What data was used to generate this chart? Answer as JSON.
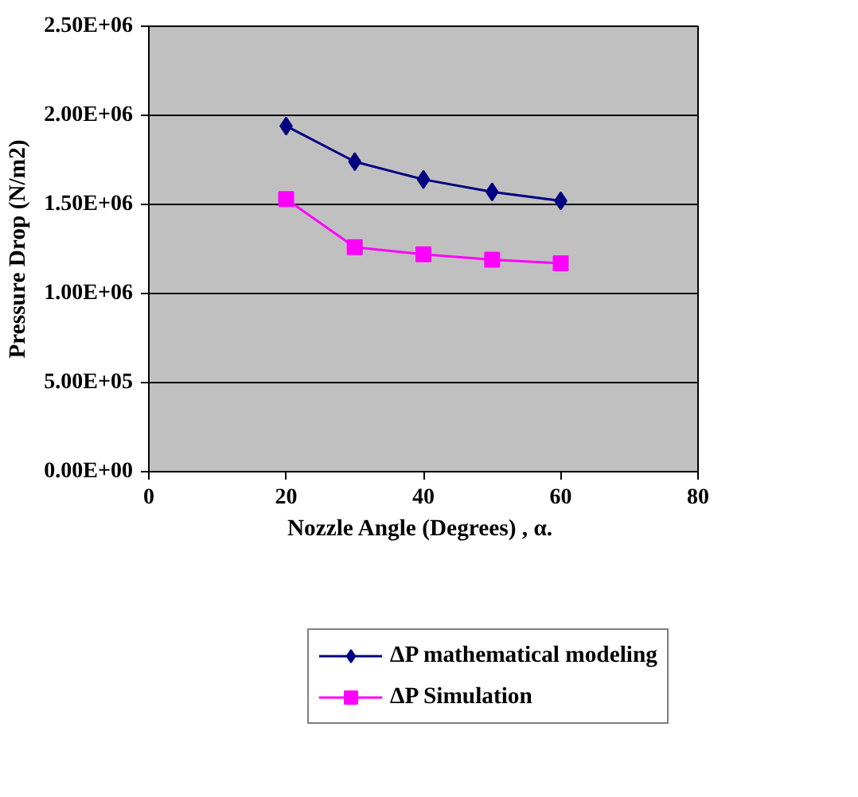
{
  "chart_data": {
    "type": "line",
    "xlabel": "Nozzle Angle (Degrees)  , α.",
    "ylabel": "Pressure Drop (N/m2)",
    "x": [
      20,
      30,
      40,
      50,
      60
    ],
    "series": [
      {
        "name": "ΔP mathematical modeling",
        "color": "#000080",
        "marker": "diamond",
        "values": [
          1940000,
          1740000,
          1640000,
          1570000,
          1520000
        ]
      },
      {
        "name": "ΔP Simulation",
        "color": "#ff00ff",
        "marker": "square",
        "values": [
          1530000,
          1260000,
          1220000,
          1190000,
          1170000
        ]
      }
    ],
    "xlim": [
      0,
      80
    ],
    "xticks": [
      0,
      20,
      40,
      60,
      80
    ],
    "ylim": [
      0,
      2500000
    ],
    "yticks": [
      {
        "value": 0,
        "label": "0.00E+00"
      },
      {
        "value": 500000,
        "label": "5.00E+05"
      },
      {
        "value": 1000000,
        "label": "1.00E+06"
      },
      {
        "value": 1500000,
        "label": "1.50E+06"
      },
      {
        "value": 2000000,
        "label": "2.00E+06"
      },
      {
        "value": 2500000,
        "label": "2.50E+06"
      }
    ],
    "grid": "y",
    "legend": "bottom"
  }
}
